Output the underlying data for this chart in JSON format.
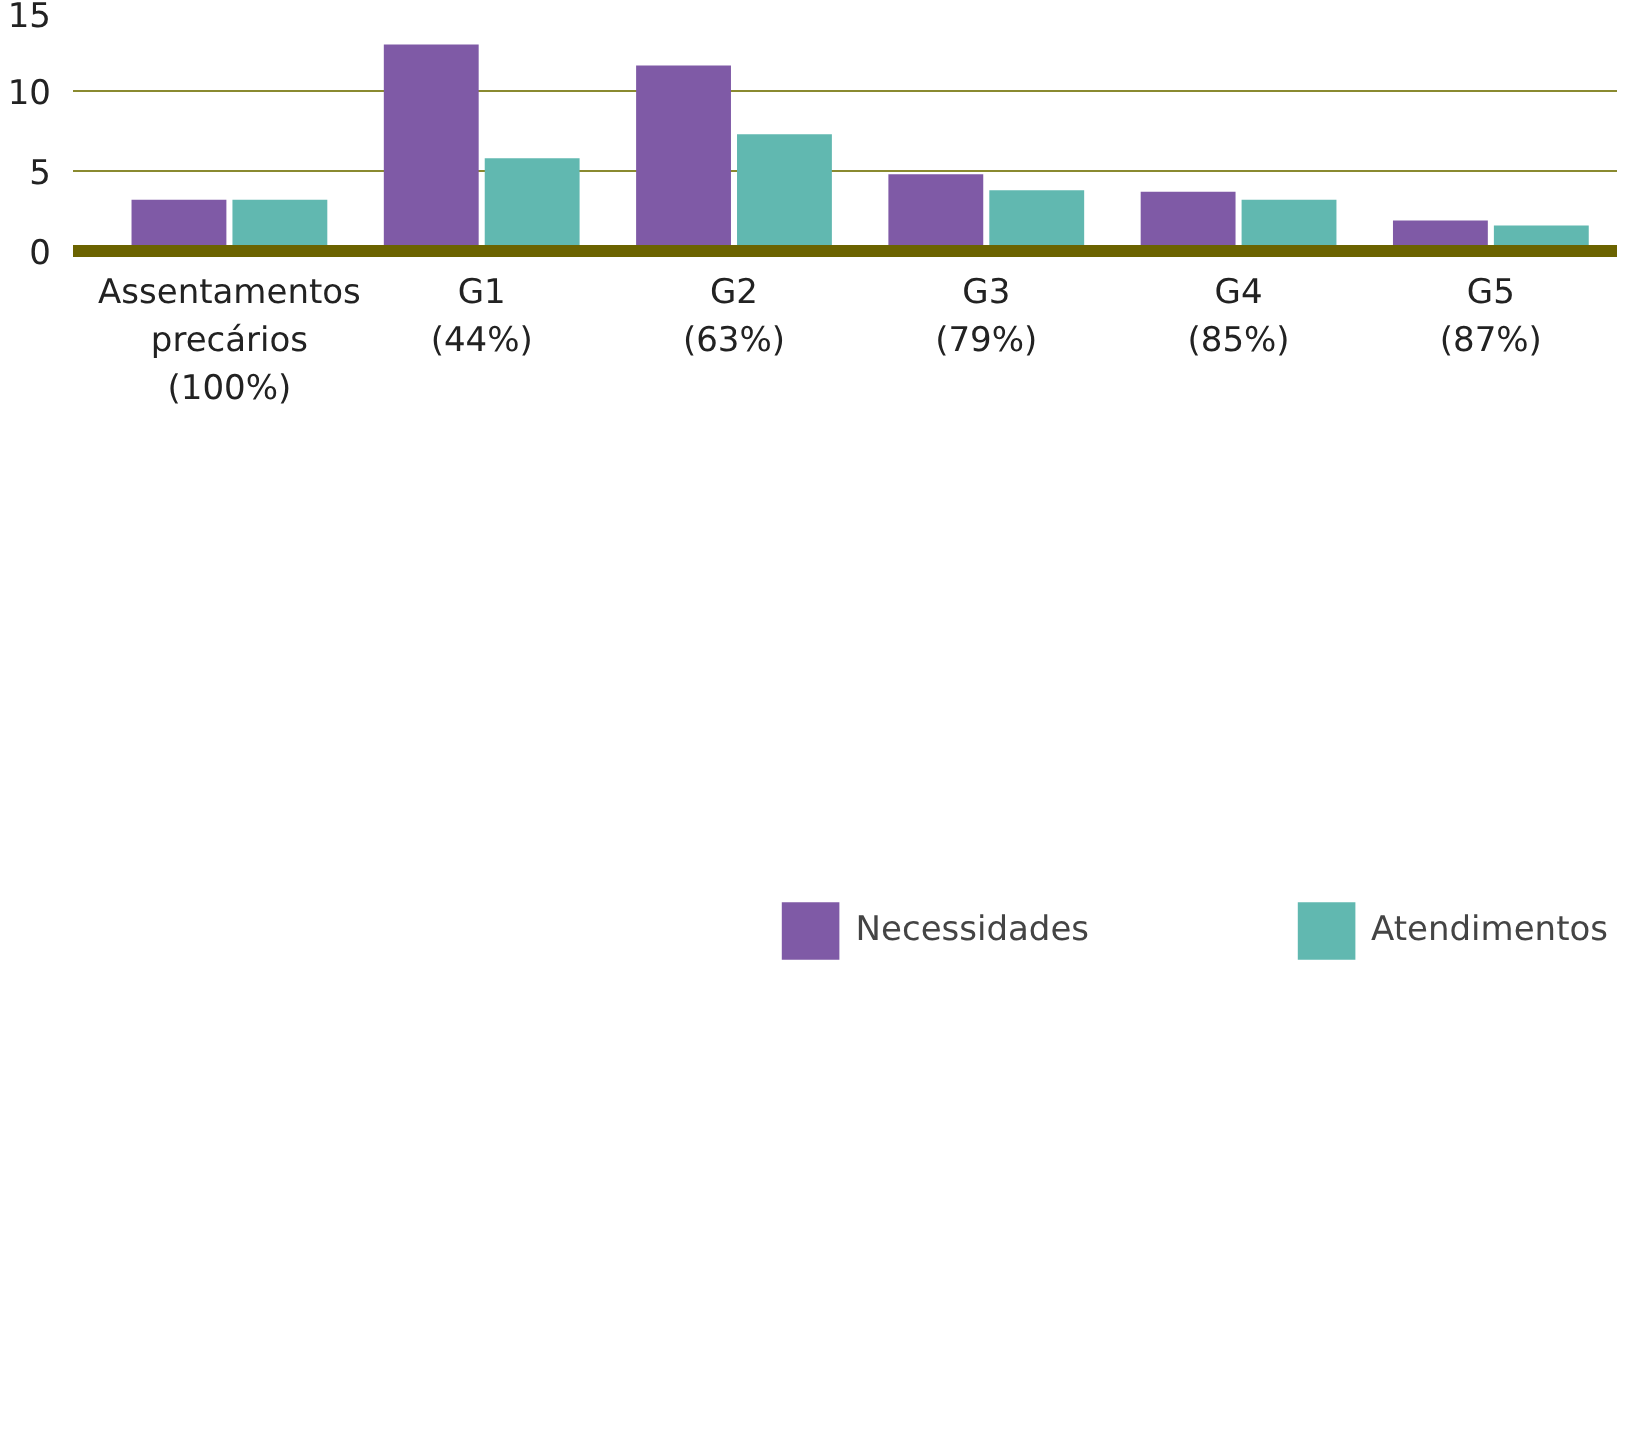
{
  "chart_data": {
    "type": "bar",
    "categories": [
      "Assentamentos\nprecários\n(100%)",
      "G1\n(44%)",
      "G2\n(63%)",
      "G3\n(79%)",
      "G4\n(85%)",
      "G5\n(87%)"
    ],
    "series": [
      {
        "name": "Necessidades",
        "color": "#7f5aa6",
        "values": [
          3.2,
          12.9,
          11.6,
          4.8,
          3.7,
          1.9
        ]
      },
      {
        "name": "Atendimentos",
        "color": "#61b8b0",
        "values": [
          3.2,
          5.8,
          7.3,
          3.8,
          3.2,
          1.6
        ]
      }
    ],
    "ylim": [
      0,
      15
    ],
    "yticks": [
      0,
      5,
      10,
      15
    ],
    "grid": "y",
    "legend": "bottom"
  }
}
